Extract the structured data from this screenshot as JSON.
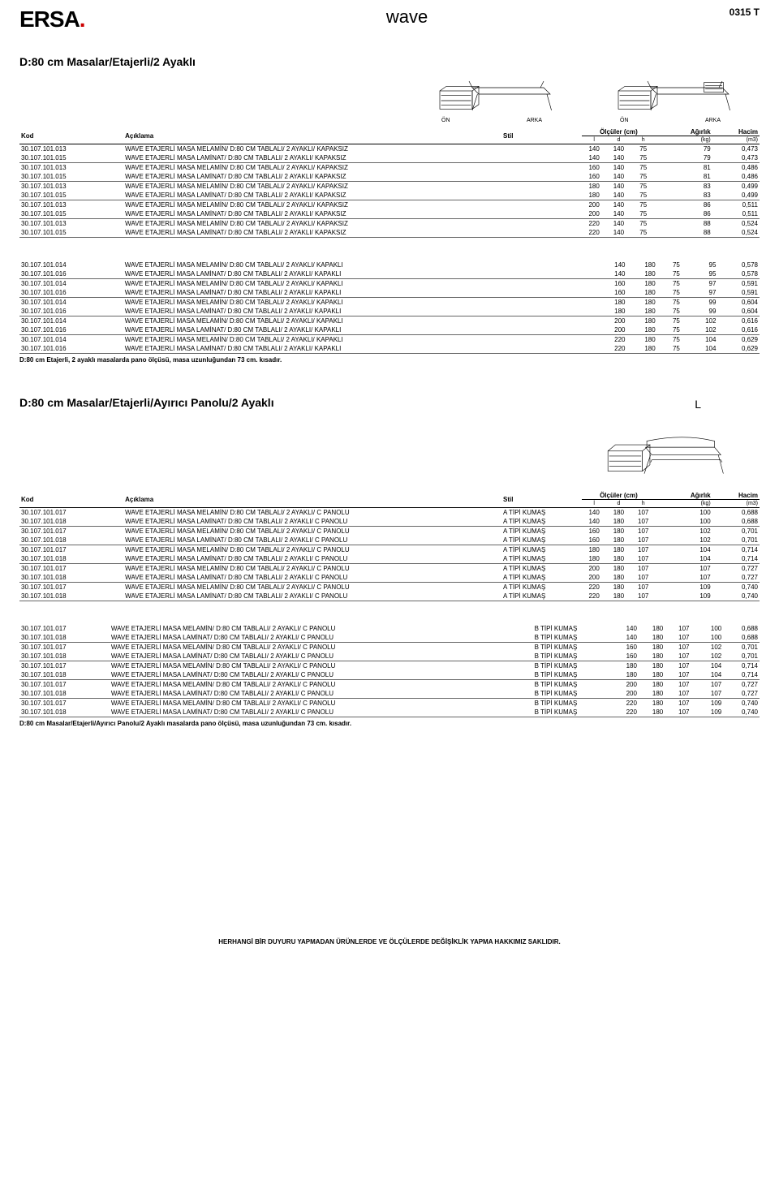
{
  "header": {
    "brand_text": "wave",
    "doc_code": "0315 T",
    "logo_text": "ERSA",
    "logo_dot": "."
  },
  "section1": {
    "title": "D:80 cm Masalar/Etajerli/2 Ayaklı",
    "sketch_labels": {
      "on": "ÖN",
      "arka": "ARKA"
    }
  },
  "table_headers": {
    "kod": "Kod",
    "aciklama": "Açıklama",
    "stil": "Stil",
    "olculer": "Ölçüler (cm)",
    "l": "l",
    "d": "d",
    "h": "h",
    "agirlik": "Ağırlık",
    "agirlik_u": "(kg)",
    "hacim": "Hacim",
    "hacim_u": "(m3)"
  },
  "section1_groups": [
    [
      {
        "kod": "30.107.101.013",
        "desc": "WAVE ETAJERLİ MASA MELAMİN/ D:80 CM TABLALI/ 2 AYAKLI/ KAPAKSIZ",
        "stil": "",
        "l": "140",
        "d": "140",
        "h": "75",
        "wt": "79",
        "vol": "0,473"
      },
      {
        "kod": "30.107.101.015",
        "desc": "WAVE ETAJERLİ MASA LAMİNAT/ D:80 CM TABLALI/ 2 AYAKLI/ KAPAKSIZ",
        "stil": "",
        "l": "140",
        "d": "140",
        "h": "75",
        "wt": "79",
        "vol": "0,473"
      }
    ],
    [
      {
        "kod": "30.107.101.013",
        "desc": "WAVE ETAJERLİ MASA MELAMİN/ D:80 CM TABLALI/ 2 AYAKLI/ KAPAKSIZ",
        "stil": "",
        "l": "160",
        "d": "140",
        "h": "75",
        "wt": "81",
        "vol": "0,486"
      },
      {
        "kod": "30.107.101.015",
        "desc": "WAVE ETAJERLİ MASA LAMİNAT/ D:80 CM TABLALI/ 2 AYAKLI/ KAPAKSIZ",
        "stil": "",
        "l": "160",
        "d": "140",
        "h": "75",
        "wt": "81",
        "vol": "0,486"
      }
    ],
    [
      {
        "kod": "30.107.101.013",
        "desc": "WAVE ETAJERLİ MASA MELAMİN/ D:80 CM TABLALI/ 2 AYAKLI/ KAPAKSIZ",
        "stil": "",
        "l": "180",
        "d": "140",
        "h": "75",
        "wt": "83",
        "vol": "0,499"
      },
      {
        "kod": "30.107.101.015",
        "desc": "WAVE ETAJERLİ MASA LAMİNAT/ D:80 CM TABLALI/ 2 AYAKLI/ KAPAKSIZ",
        "stil": "",
        "l": "180",
        "d": "140",
        "h": "75",
        "wt": "83",
        "vol": "0,499"
      }
    ],
    [
      {
        "kod": "30.107.101.013",
        "desc": "WAVE ETAJERLİ MASA MELAMİN/ D:80 CM TABLALI/ 2 AYAKLI/ KAPAKSIZ",
        "stil": "",
        "l": "200",
        "d": "140",
        "h": "75",
        "wt": "86",
        "vol": "0,511"
      },
      {
        "kod": "30.107.101.015",
        "desc": "WAVE ETAJERLİ MASA LAMİNAT/ D:80 CM TABLALI/ 2 AYAKLI/ KAPAKSIZ",
        "stil": "",
        "l": "200",
        "d": "140",
        "h": "75",
        "wt": "86",
        "vol": "0,511"
      }
    ],
    [
      {
        "kod": "30.107.101.013",
        "desc": "WAVE ETAJERLİ MASA MELAMİN/ D:80 CM TABLALI/ 2 AYAKLI/ KAPAKSIZ",
        "stil": "",
        "l": "220",
        "d": "140",
        "h": "75",
        "wt": "88",
        "vol": "0,524"
      },
      {
        "kod": "30.107.101.015",
        "desc": "WAVE ETAJERLİ MASA LAMİNAT/ D:80 CM TABLALI/ 2 AYAKLI/ KAPAKSIZ",
        "stil": "",
        "l": "220",
        "d": "140",
        "h": "75",
        "wt": "88",
        "vol": "0,524"
      }
    ]
  ],
  "section1b_groups": [
    [
      {
        "kod": "30.107.101.014",
        "desc": "WAVE ETAJERLİ MASA MELAMİN/ D:80 CM TABLALI/ 2 AYAKLI/ KAPAKLI",
        "stil": "",
        "l": "140",
        "d": "180",
        "h": "75",
        "wt": "95",
        "vol": "0,578"
      },
      {
        "kod": "30.107.101.016",
        "desc": "WAVE ETAJERLİ MASA LAMİNAT/ D:80 CM TABLALI/ 2 AYAKLI/ KAPAKLI",
        "stil": "",
        "l": "140",
        "d": "180",
        "h": "75",
        "wt": "95",
        "vol": "0,578"
      }
    ],
    [
      {
        "kod": "30.107.101.014",
        "desc": "WAVE ETAJERLİ MASA MELAMİN/ D:80 CM TABLALI/ 2 AYAKLI/ KAPAKLI",
        "stil": "",
        "l": "160",
        "d": "180",
        "h": "75",
        "wt": "97",
        "vol": "0,591"
      },
      {
        "kod": "30.107.101.016",
        "desc": "WAVE ETAJERLİ MASA LAMİNAT/ D:80 CM TABLALI/ 2 AYAKLI/ KAPAKLI",
        "stil": "",
        "l": "160",
        "d": "180",
        "h": "75",
        "wt": "97",
        "vol": "0,591"
      }
    ],
    [
      {
        "kod": "30.107.101.014",
        "desc": "WAVE ETAJERLİ MASA MELAMİN/ D:80 CM TABLALI/ 2 AYAKLI/ KAPAKLI",
        "stil": "",
        "l": "180",
        "d": "180",
        "h": "75",
        "wt": "99",
        "vol": "0,604"
      },
      {
        "kod": "30.107.101.016",
        "desc": "WAVE ETAJERLİ MASA LAMİNAT/ D:80 CM TABLALI/ 2 AYAKLI/ KAPAKLI",
        "stil": "",
        "l": "180",
        "d": "180",
        "h": "75",
        "wt": "99",
        "vol": "0,604"
      }
    ],
    [
      {
        "kod": "30.107.101.014",
        "desc": "WAVE ETAJERLİ MASA MELAMİN/ D:80 CM TABLALI/ 2 AYAKLI/ KAPAKLI",
        "stil": "",
        "l": "200",
        "d": "180",
        "h": "75",
        "wt": "102",
        "vol": "0,616"
      },
      {
        "kod": "30.107.101.016",
        "desc": "WAVE ETAJERLİ MASA LAMİNAT/ D:80 CM TABLALI/ 2 AYAKLI/ KAPAKLI",
        "stil": "",
        "l": "200",
        "d": "180",
        "h": "75",
        "wt": "102",
        "vol": "0,616"
      }
    ],
    [
      {
        "kod": "30.107.101.014",
        "desc": "WAVE ETAJERLİ MASA MELAMİN/ D:80 CM TABLALI/ 2 AYAKLI/ KAPAKLI",
        "stil": "",
        "l": "220",
        "d": "180",
        "h": "75",
        "wt": "104",
        "vol": "0,629"
      },
      {
        "kod": "30.107.101.016",
        "desc": "WAVE ETAJERLİ MASA LAMİNAT/ D:80 CM TABLALI/ 2 AYAKLI/ KAPAKLI",
        "stil": "",
        "l": "220",
        "d": "180",
        "h": "75",
        "wt": "104",
        "vol": "0,629"
      }
    ]
  ],
  "section1_note": "D:80 cm Etajerli, 2 ayaklı masalarda pano ölçüsü, masa uzunluğundan 73 cm. kısadır.",
  "section2": {
    "title": "D:80 cm Masalar/Etajerli/Ayırıcı Panolu/2 Ayaklı",
    "L": "L"
  },
  "section2a_groups": [
    [
      {
        "kod": "30.107.101.017",
        "desc": "WAVE ETAJERLİ MASA MELAMİN/ D:80 CM TABLALI/ 2 AYAKLI/ C PANOLU",
        "stil": "A TİPİ KUMAŞ",
        "l": "140",
        "d": "180",
        "h": "107",
        "wt": "100",
        "vol": "0,688"
      },
      {
        "kod": "30.107.101.018",
        "desc": "WAVE ETAJERLİ MASA LAMİNAT/ D:80 CM TABLALI/ 2 AYAKLI/ C PANOLU",
        "stil": "A TİPİ KUMAŞ",
        "l": "140",
        "d": "180",
        "h": "107",
        "wt": "100",
        "vol": "0,688"
      }
    ],
    [
      {
        "kod": "30.107.101.017",
        "desc": "WAVE ETAJERLİ MASA MELAMİN/ D:80 CM TABLALI/ 2 AYAKLI/ C PANOLU",
        "stil": "A TİPİ KUMAŞ",
        "l": "160",
        "d": "180",
        "h": "107",
        "wt": "102",
        "vol": "0,701"
      },
      {
        "kod": "30.107.101.018",
        "desc": "WAVE ETAJERLİ MASA LAMİNAT/ D:80 CM TABLALI/ 2 AYAKLI/ C PANOLU",
        "stil": "A TİPİ KUMAŞ",
        "l": "160",
        "d": "180",
        "h": "107",
        "wt": "102",
        "vol": "0,701"
      }
    ],
    [
      {
        "kod": "30.107.101.017",
        "desc": "WAVE ETAJERLİ MASA MELAMİN/ D:80 CM TABLALI/ 2 AYAKLI/ C PANOLU",
        "stil": "A TİPİ KUMAŞ",
        "l": "180",
        "d": "180",
        "h": "107",
        "wt": "104",
        "vol": "0,714"
      },
      {
        "kod": "30.107.101.018",
        "desc": "WAVE ETAJERLİ MASA LAMİNAT/ D:80 CM TABLALI/ 2 AYAKLI/ C PANOLU",
        "stil": "A TİPİ KUMAŞ",
        "l": "180",
        "d": "180",
        "h": "107",
        "wt": "104",
        "vol": "0,714"
      }
    ],
    [
      {
        "kod": "30.107.101.017",
        "desc": "WAVE ETAJERLİ MASA MELAMİN/ D:80 CM TABLALI/ 2 AYAKLI/ C PANOLU",
        "stil": "A TİPİ KUMAŞ",
        "l": "200",
        "d": "180",
        "h": "107",
        "wt": "107",
        "vol": "0,727"
      },
      {
        "kod": "30.107.101.018",
        "desc": "WAVE ETAJERLİ MASA LAMİNAT/ D:80 CM TABLALI/ 2 AYAKLI/ C PANOLU",
        "stil": "A TİPİ KUMAŞ",
        "l": "200",
        "d": "180",
        "h": "107",
        "wt": "107",
        "vol": "0,727"
      }
    ],
    [
      {
        "kod": "30.107.101.017",
        "desc": "WAVE ETAJERLİ MASA MELAMİN/ D:80 CM TABLALI/ 2 AYAKLI/ C PANOLU",
        "stil": "A TİPİ KUMAŞ",
        "l": "220",
        "d": "180",
        "h": "107",
        "wt": "109",
        "vol": "0,740"
      },
      {
        "kod": "30.107.101.018",
        "desc": "WAVE ETAJERLİ MASA LAMİNAT/ D:80 CM TABLALI/ 2 AYAKLI/ C PANOLU",
        "stil": "A TİPİ KUMAŞ",
        "l": "220",
        "d": "180",
        "h": "107",
        "wt": "109",
        "vol": "0,740"
      }
    ]
  ],
  "section2b_groups": [
    [
      {
        "kod": "30.107.101.017",
        "desc": "WAVE ETAJERLİ MASA MELAMİN/ D:80 CM TABLALI/ 2 AYAKLI/ C PANOLU",
        "stil": "B TİPİ KUMAŞ",
        "l": "140",
        "d": "180",
        "h": "107",
        "wt": "100",
        "vol": "0,688"
      },
      {
        "kod": "30.107.101.018",
        "desc": "WAVE ETAJERLİ MASA LAMİNAT/ D:80 CM TABLALI/ 2 AYAKLI/ C PANOLU",
        "stil": "B TİPİ KUMAŞ",
        "l": "140",
        "d": "180",
        "h": "107",
        "wt": "100",
        "vol": "0,688"
      }
    ],
    [
      {
        "kod": "30.107.101.017",
        "desc": "WAVE ETAJERLİ MASA MELAMİN/ D:80 CM TABLALI/ 2 AYAKLI/ C PANOLU",
        "stil": "B TİPİ KUMAŞ",
        "l": "160",
        "d": "180",
        "h": "107",
        "wt": "102",
        "vol": "0,701"
      },
      {
        "kod": "30.107.101.018",
        "desc": "WAVE ETAJERLİ MASA LAMİNAT/ D:80 CM TABLALI/ 2 AYAKLI/ C PANOLU",
        "stil": "B TİPİ KUMAŞ",
        "l": "160",
        "d": "180",
        "h": "107",
        "wt": "102",
        "vol": "0,701"
      }
    ],
    [
      {
        "kod": "30.107.101.017",
        "desc": "WAVE ETAJERLİ MASA MELAMİN/ D:80 CM TABLALI/ 2 AYAKLI/ C PANOLU",
        "stil": "B TİPİ KUMAŞ",
        "l": "180",
        "d": "180",
        "h": "107",
        "wt": "104",
        "vol": "0,714"
      },
      {
        "kod": "30.107.101.018",
        "desc": "WAVE ETAJERLİ MASA LAMİNAT/ D:80 CM TABLALI/ 2 AYAKLI/ C PANOLU",
        "stil": "B TİPİ KUMAŞ",
        "l": "180",
        "d": "180",
        "h": "107",
        "wt": "104",
        "vol": "0,714"
      }
    ],
    [
      {
        "kod": "30.107.101.017",
        "desc": "WAVE ETAJERLİ MASA MELAMİN/ D:80 CM TABLALI/ 2 AYAKLI/ C PANOLU",
        "stil": "B TİPİ KUMAŞ",
        "l": "200",
        "d": "180",
        "h": "107",
        "wt": "107",
        "vol": "0,727"
      },
      {
        "kod": "30.107.101.018",
        "desc": "WAVE ETAJERLİ MASA LAMİNAT/ D:80 CM TABLALI/ 2 AYAKLI/ C PANOLU",
        "stil": "B TİPİ KUMAŞ",
        "l": "200",
        "d": "180",
        "h": "107",
        "wt": "107",
        "vol": "0,727"
      }
    ],
    [
      {
        "kod": "30.107.101.017",
        "desc": "WAVE ETAJERLİ MASA MELAMİN/ D:80 CM TABLALI/ 2 AYAKLI/ C PANOLU",
        "stil": "B TİPİ KUMAŞ",
        "l": "220",
        "d": "180",
        "h": "107",
        "wt": "109",
        "vol": "0,740"
      },
      {
        "kod": "30.107.101.018",
        "desc": "WAVE ETAJERLİ MASA LAMİNAT/ D:80 CM TABLALI/ 2 AYAKLI/ C PANOLU",
        "stil": "B TİPİ KUMAŞ",
        "l": "220",
        "d": "180",
        "h": "107",
        "wt": "109",
        "vol": "0,740"
      }
    ]
  ],
  "section2_note": "D:80 cm Masalar/Etajerli/Ayırıcı Panolu/2 Ayaklı masalarda pano ölçüsü, masa uzunluğundan 73 cm. kısadır.",
  "footer": "HERHANGİ BİR DUYURU YAPMADAN ÜRÜNLERDE VE ÖLÇÜLERDE DEĞİŞİKLİK YAPMA HAKKIMIZ SAKLIDIR."
}
